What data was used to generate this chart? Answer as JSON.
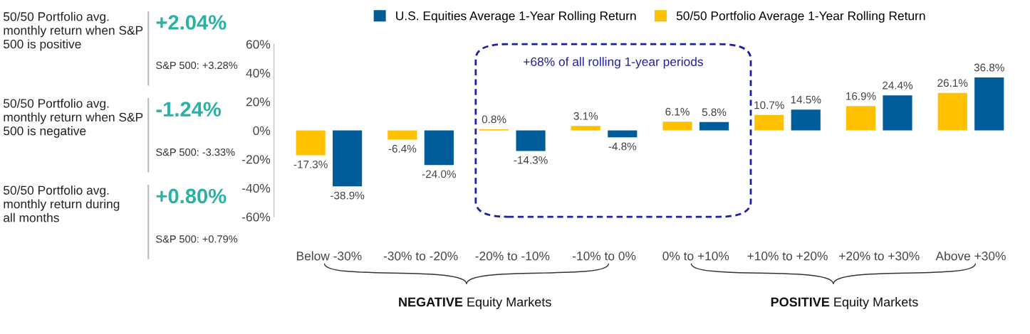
{
  "chart_data": [
    {
      "type": "other",
      "annotations": [
        "50/50 Portfolio avg. monthly return when S&P 500 is positive",
        "+2.04%",
        "S&P 500: +3.28%",
        "50/50 Portfolio avg. monthly return when S&P 500 is negative",
        "-1.24%",
        "S&P 500: -3.33%",
        "50/50 Portfolio avg. monthly return during all months",
        "+0.80%",
        "S&P 500: +0.79%"
      ]
    },
    {
      "type": "bar",
      "categories": [
        "Below -30%",
        "-30% to -20%",
        "-20% to -10%",
        "-10% to 0%",
        "0% to +10%",
        "+10% to +20%",
        "+20% to +30%",
        "Above +30%"
      ],
      "series": [
        {
          "name": "50/50 Portfolio Average 1-Year Rolling Return",
          "color": "#ffc000",
          "values": [
            -17.3,
            -6.4,
            0.8,
            3.1,
            6.1,
            10.7,
            16.9,
            26.1
          ],
          "value_labels": [
            "-17.3%",
            "-6.4%",
            "0.8%",
            "3.1%",
            "6.1%",
            "10.7%",
            "16.9%",
            "26.1%"
          ]
        },
        {
          "name": "U.S. Equities Average 1-Year Rolling Return",
          "color": "#005d9a",
          "values": [
            -38.9,
            -24.0,
            -14.3,
            -4.8,
            5.8,
            14.5,
            24.4,
            36.8
          ],
          "value_labels": [
            "-38.9%",
            "-24.0%",
            "-14.3%",
            "-4.8%",
            "5.8%",
            "14.5%",
            "24.4%",
            "36.8%"
          ]
        }
      ],
      "ylim": [
        -60,
        60
      ],
      "yticks": [
        {
          "value": -60,
          "label": "-60%"
        },
        {
          "value": -40,
          "label": "-40%"
        },
        {
          "value": -20,
          "label": "-20%"
        },
        {
          "value": 0,
          "label": "0%"
        },
        {
          "value": 20,
          "label": "20%"
        },
        {
          "value": 40,
          "label": "40%"
        },
        {
          "value": 60,
          "label": "60%"
        }
      ],
      "grid": false,
      "legend": "top",
      "annotations": [
        "+68% of all rolling 1-year periods",
        "NEGATIVE Equity Markets",
        "POSITIVE Equity Markets"
      ]
    }
  ]
}
